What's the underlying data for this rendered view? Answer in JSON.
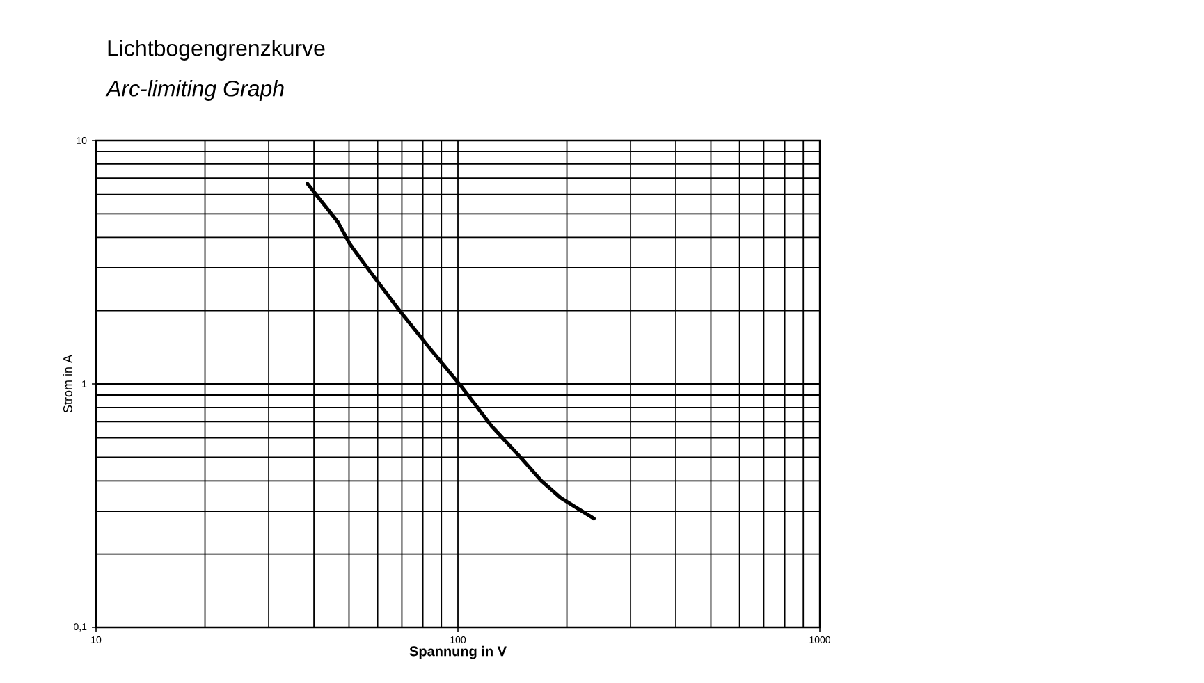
{
  "chart_data": {
    "type": "line",
    "title": "Lichtbogengrenzkurve",
    "subtitle": "*Arc-limiting Graph*",
    "xlabel": "**Spannung in V**",
    "ylabel": "Strom in A",
    "log": "xy",
    "grid": true,
    "xlim": [
      10,
      1000
    ],
    "ylim": [
      0.1,
      10
    ],
    "xticks": [
      10,
      100,
      1000
    ],
    "yticks": [
      {
        "value": 0.1,
        "label": "0,1"
      },
      1,
      10
    ],
    "series": [
      {
        "color": "#000000",
        "x": [
          38.4,
          46.6,
          50.2,
          56.7,
          69,
          83.9,
          102,
          124,
          150.7,
          170,
          192.5,
          237.5
        ],
        "values": [
          6.65,
          4.62,
          3.77,
          2.94,
          2.0,
          1.39,
          0.98,
          0.67,
          0.49,
          0.4,
          0.34,
          0.28
        ]
      }
    ]
  }
}
